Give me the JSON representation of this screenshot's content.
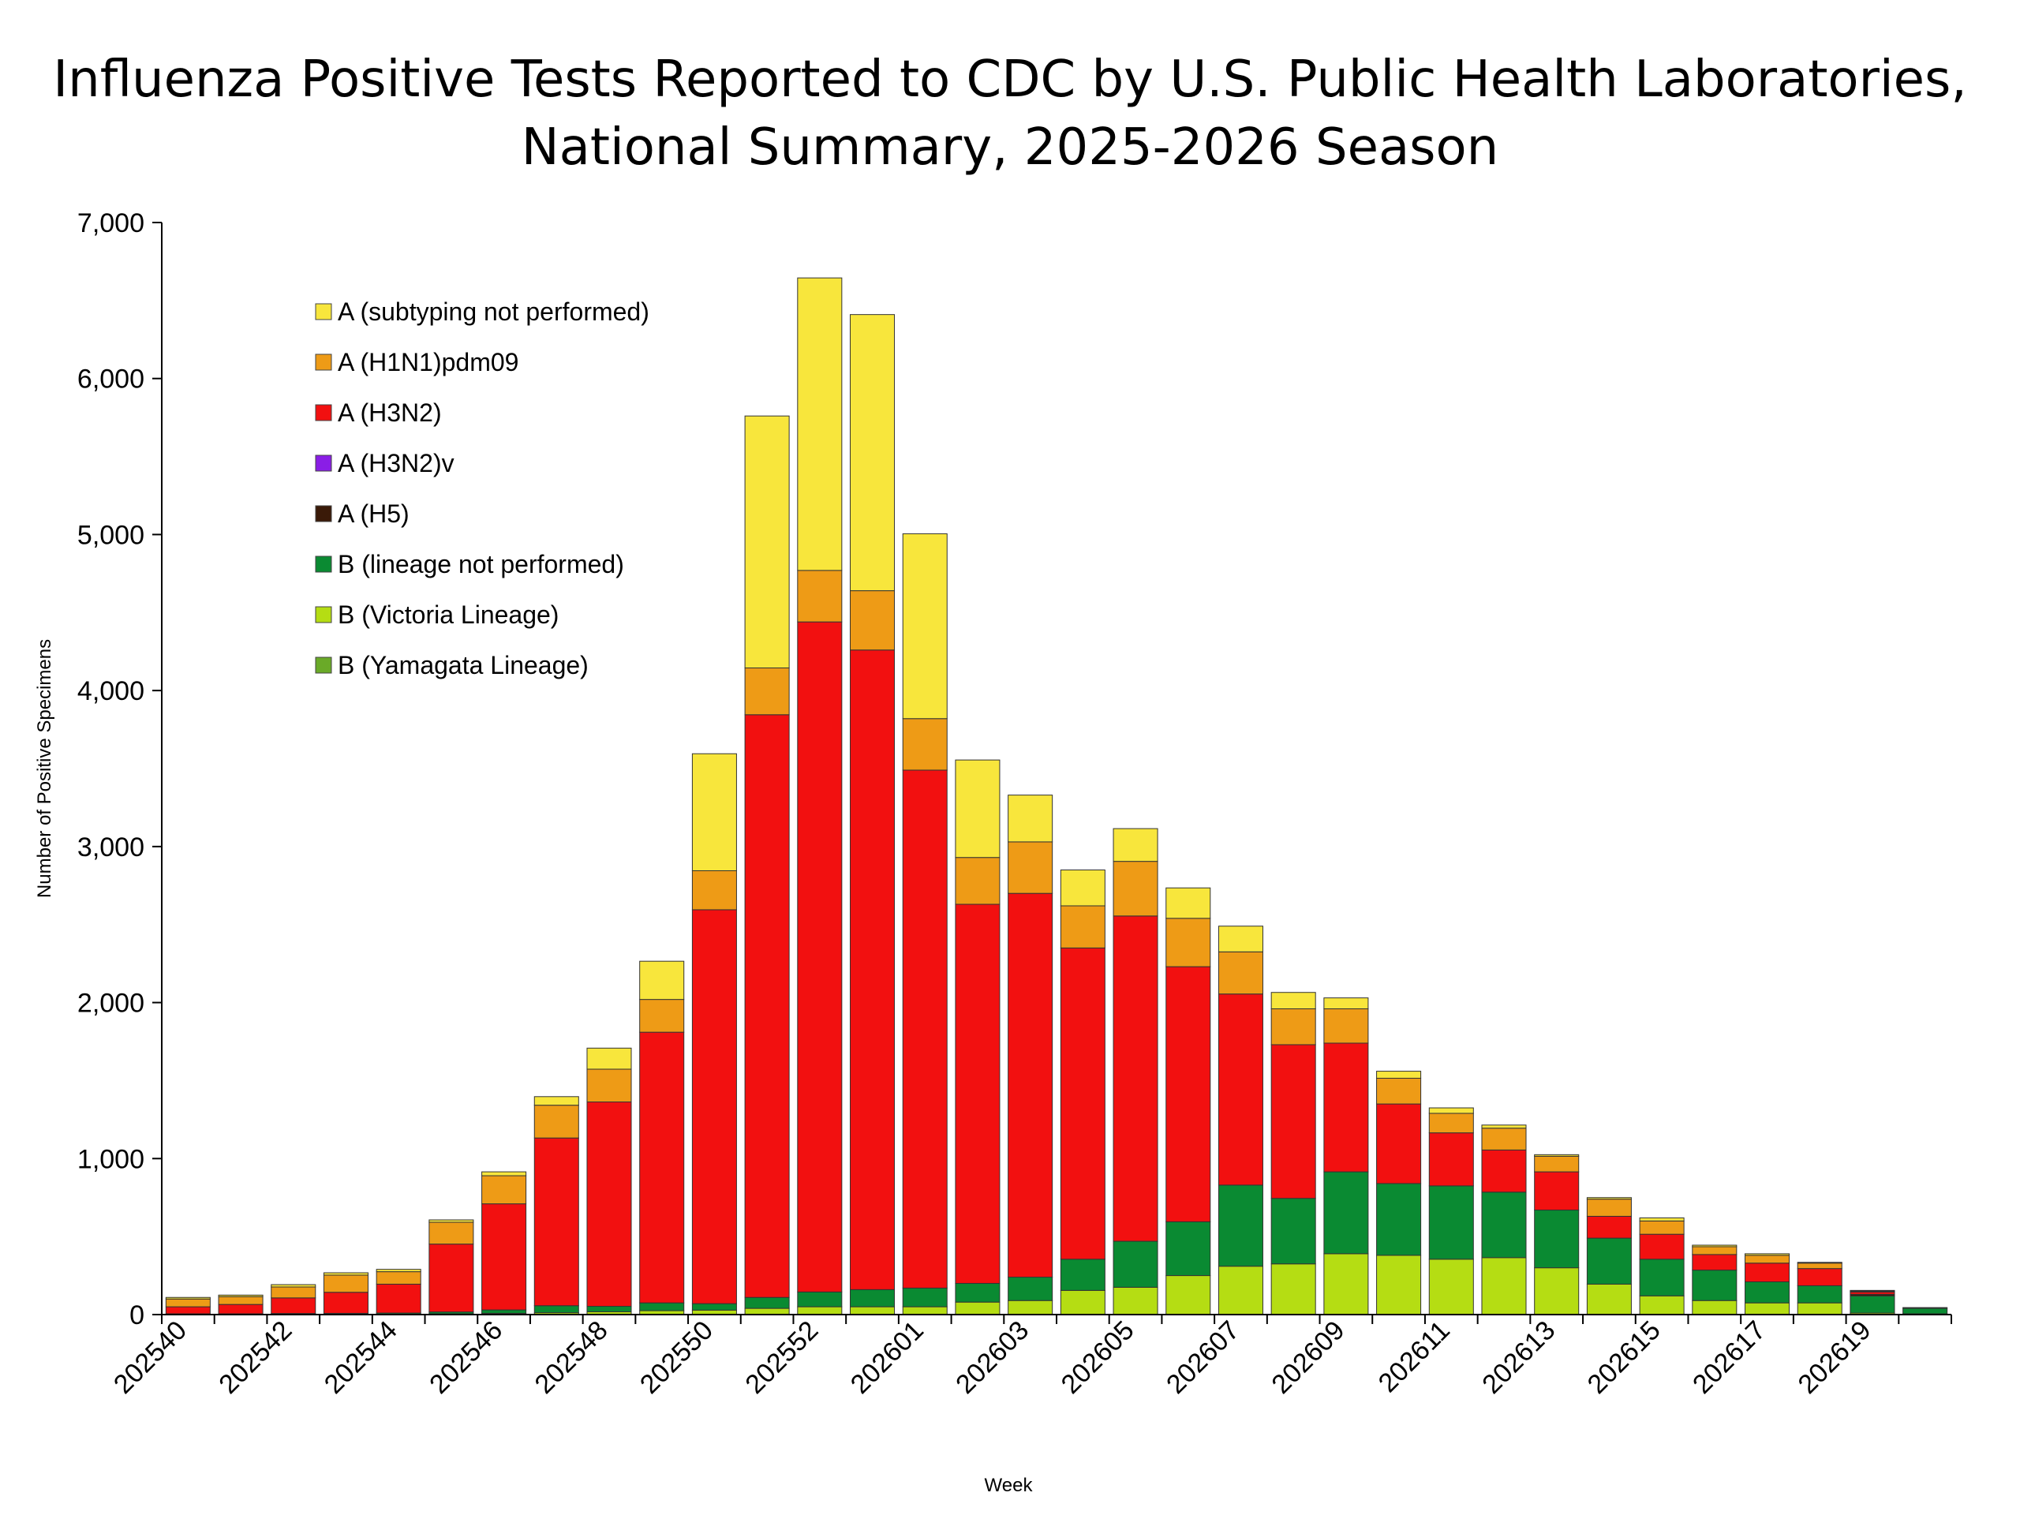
{
  "chart_data": {
    "type": "bar",
    "stacked": true,
    "title_lines": [
      "Influenza Positive Tests Reported to CDC by U.S. Public Health Laboratories,",
      "National Summary, 2025-2026 Season"
    ],
    "xlabel": "Week",
    "ylabel": "Number of Positive Specimens",
    "ylim": [
      0,
      7000
    ],
    "yticks": [
      0,
      1000,
      2000,
      3000,
      4000,
      5000,
      6000,
      7000
    ],
    "ytick_labels": [
      "0",
      "1,000",
      "2,000",
      "3,000",
      "4,000",
      "5,000",
      "6,000",
      "7,000"
    ],
    "legend_position": "top-left",
    "categories": [
      "202540",
      "202541",
      "202542",
      "202543",
      "202544",
      "202545",
      "202546",
      "202547",
      "202548",
      "202549",
      "202550",
      "202551",
      "202552",
      "202553",
      "202601",
      "202602",
      "202603",
      "202604",
      "202605",
      "202606",
      "202607",
      "202608",
      "202609",
      "202610",
      "202611",
      "202612",
      "202613",
      "202614",
      "202615",
      "202616",
      "202617",
      "202618",
      "202619",
      "202620"
    ],
    "tick_labels": [
      "202540",
      "",
      "202542",
      "",
      "202544",
      "",
      "202546",
      "",
      "202548",
      "",
      "202550",
      "",
      "202552",
      "",
      "202601",
      "",
      "202603",
      "",
      "202605",
      "",
      "202607",
      "",
      "202609",
      "",
      "202611",
      "",
      "202613",
      "",
      "202615",
      "",
      "202617",
      "",
      "202619",
      ""
    ],
    "series": [
      {
        "name": "B (Yamagata Lineage)",
        "color": "#6aaa28",
        "values": [
          0,
          0,
          0,
          0,
          0,
          0,
          0,
          0,
          0,
          0,
          0,
          0,
          0,
          0,
          0,
          0,
          0,
          0,
          0,
          0,
          0,
          0,
          0,
          0,
          0,
          0,
          0,
          0,
          0,
          0,
          0,
          0,
          0,
          0
        ]
      },
      {
        "name": "B (Victoria Lineage)",
        "color": "#b5dd13",
        "values": [
          2,
          2,
          3,
          3,
          3,
          5,
          8,
          12,
          18,
          25,
          28,
          40,
          50,
          50,
          50,
          80,
          90,
          155,
          175,
          250,
          310,
          325,
          390,
          380,
          355,
          365,
          300,
          195,
          120,
          90,
          75,
          75,
          10,
          5
        ]
      },
      {
        "name": "B (lineage not performed)",
        "color": "#0a8a32",
        "values": [
          3,
          3,
          4,
          5,
          7,
          12,
          22,
          45,
          35,
          50,
          42,
          70,
          95,
          110,
          120,
          120,
          150,
          200,
          295,
          345,
          520,
          420,
          525,
          460,
          470,
          420,
          370,
          295,
          235,
          195,
          135,
          110,
          110,
          35
        ]
      },
      {
        "name": "A (H5)",
        "color": "#3a1a08",
        "values": [
          0,
          0,
          0,
          0,
          0,
          0,
          0,
          0,
          0,
          0,
          0,
          0,
          0,
          0,
          0,
          0,
          0,
          0,
          0,
          0,
          0,
          0,
          0,
          0,
          0,
          0,
          0,
          0,
          0,
          0,
          0,
          0,
          10,
          5
        ]
      },
      {
        "name": "A (H3N2)v",
        "color": "#8a1ee6",
        "values": [
          0,
          0,
          0,
          0,
          0,
          0,
          0,
          0,
          0,
          0,
          0,
          0,
          0,
          0,
          0,
          0,
          0,
          0,
          0,
          0,
          0,
          0,
          0,
          0,
          0,
          0,
          0,
          0,
          0,
          0,
          0,
          0,
          0,
          0
        ]
      },
      {
        "name": "A (H3N2)",
        "color": "#f21010",
        "values": [
          45,
          60,
          100,
          135,
          185,
          435,
          680,
          1075,
          1310,
          1735,
          2525,
          3735,
          4295,
          4100,
          3320,
          2430,
          2460,
          1995,
          2085,
          1635,
          1225,
          985,
          825,
          510,
          340,
          270,
          245,
          140,
          160,
          100,
          120,
          110,
          15,
          0
        ]
      },
      {
        "name": "A (H1N1)pdm09",
        "color": "#ee9b16",
        "values": [
          50,
          50,
          70,
          110,
          80,
          140,
          180,
          210,
          210,
          210,
          250,
          300,
          330,
          380,
          330,
          300,
          330,
          270,
          350,
          310,
          270,
          230,
          220,
          165,
          125,
          140,
          100,
          110,
          85,
          50,
          50,
          35,
          5,
          0
        ]
      },
      {
        "name": "A (subtyping not performed)",
        "color": "#f8e63c",
        "values": [
          10,
          10,
          15,
          15,
          15,
          15,
          25,
          55,
          135,
          245,
          750,
          1615,
          1875,
          1770,
          1185,
          625,
          300,
          230,
          210,
          195,
          165,
          105,
          70,
          45,
          35,
          20,
          10,
          10,
          20,
          10,
          10,
          5,
          5,
          0
        ]
      }
    ],
    "legend_order": [
      "A (subtyping not performed)",
      "A (H1N1)pdm09",
      "A (H3N2)",
      "A (H3N2)v",
      "A (H5)",
      "B (lineage not performed)",
      "B (Victoria Lineage)",
      "B (Yamagata Lineage)"
    ]
  }
}
